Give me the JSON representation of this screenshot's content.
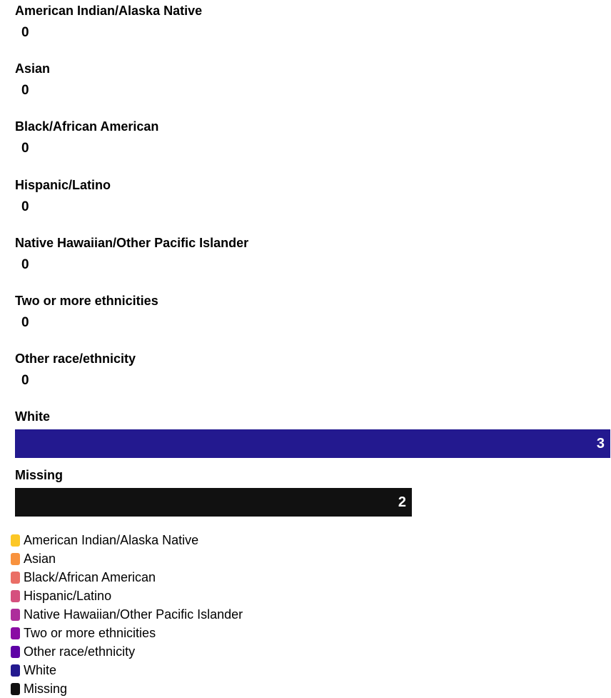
{
  "chart_data": {
    "type": "bar",
    "orientation": "horizontal",
    "categories": [
      "American Indian/Alaska Native",
      "Asian",
      "Black/African American",
      "Hispanic/Latino",
      "Native Hawaiian/Other Pacific Islander",
      "Two or more ethnicities",
      "Other race/ethnicity",
      "White",
      "Missing"
    ],
    "values": [
      0,
      0,
      0,
      0,
      0,
      0,
      0,
      3,
      2
    ],
    "xlim": [
      0,
      3
    ],
    "grid": false,
    "legend_position": "bottom-left",
    "colors": [
      "#FCC726",
      "#F8923E",
      "#EA6E66",
      "#D5507E",
      "#AD2E9B",
      "#8A0CA4",
      "#5E00A6",
      "#23198F",
      "#111111"
    ],
    "legend": [
      {
        "label": "American Indian/Alaska Native",
        "color": "#FCC726"
      },
      {
        "label": "Asian",
        "color": "#F8923E"
      },
      {
        "label": "Black/African American",
        "color": "#EA6E66"
      },
      {
        "label": "Hispanic/Latino",
        "color": "#D5507E"
      },
      {
        "label": "Native Hawaiian/Other Pacific Islander",
        "color": "#AD2E9B"
      },
      {
        "label": "Two or more ethnicities",
        "color": "#8A0CA4"
      },
      {
        "label": "Other race/ethnicity",
        "color": "#5E00A6"
      },
      {
        "label": "White",
        "color": "#23198F"
      },
      {
        "label": "Missing",
        "color": "#111111"
      }
    ]
  }
}
